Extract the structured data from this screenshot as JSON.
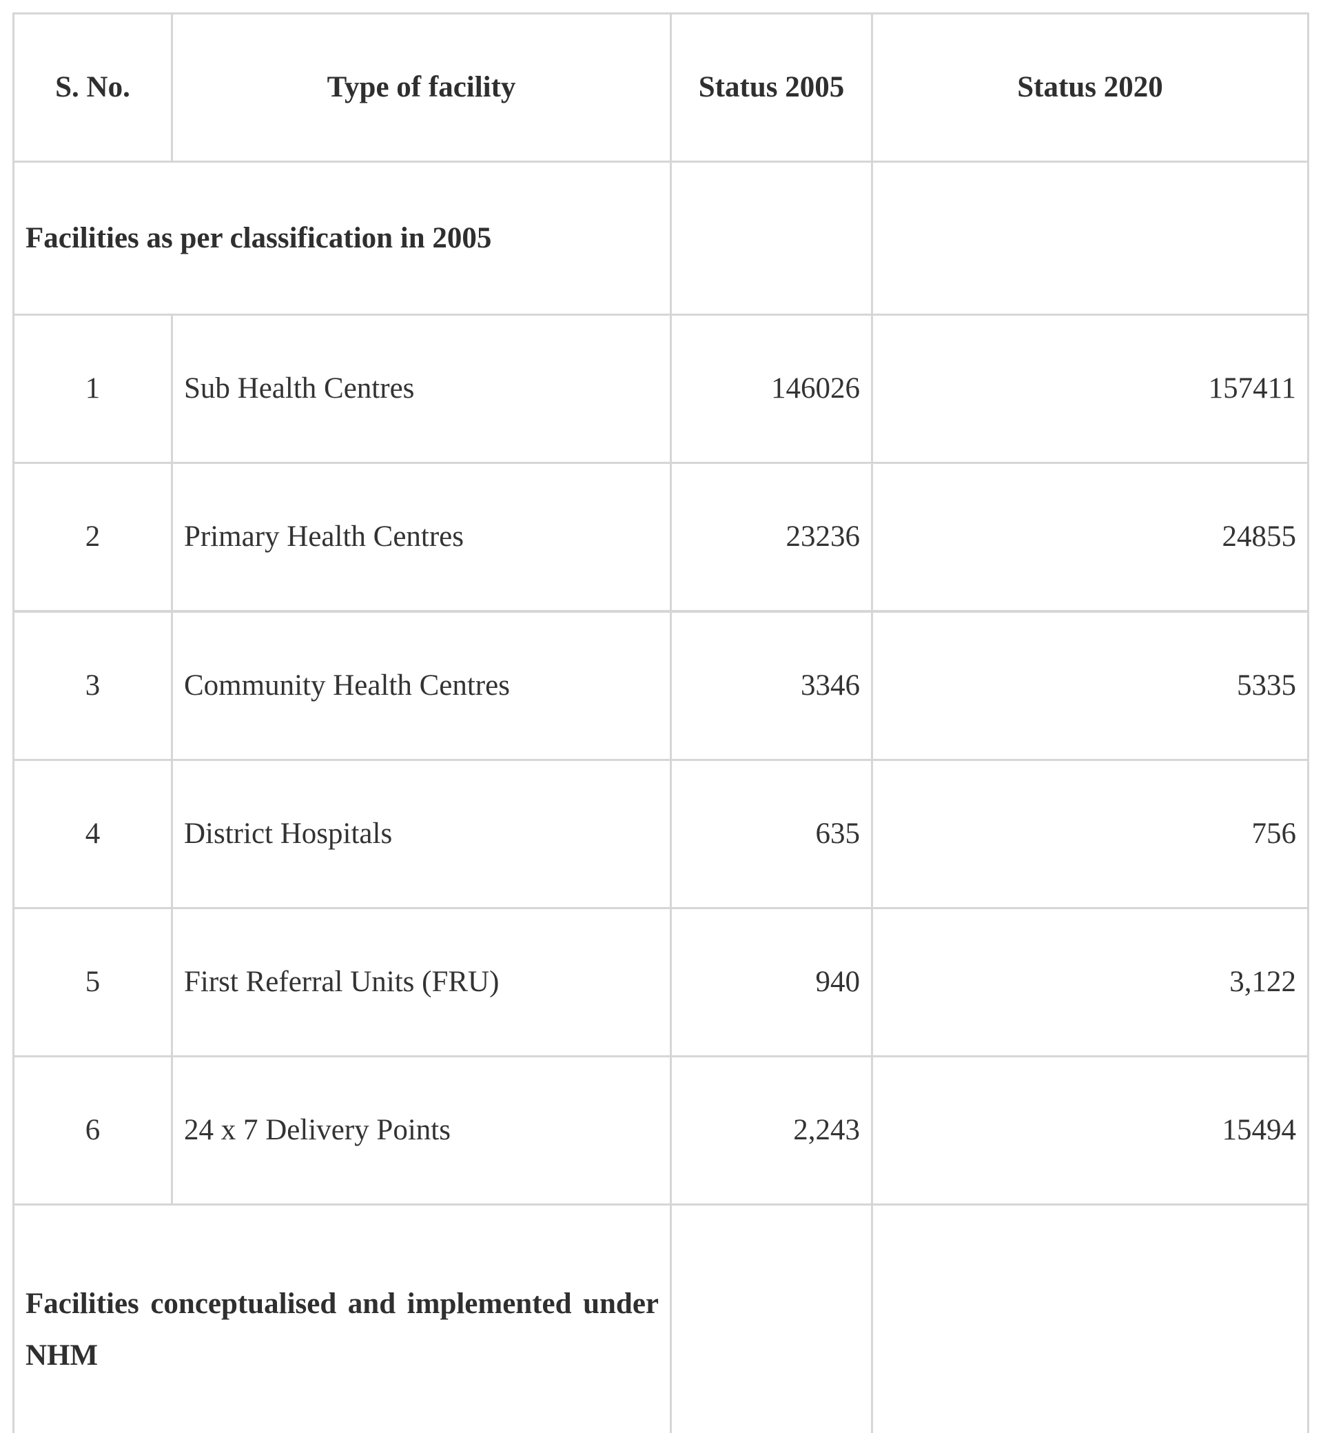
{
  "table": {
    "headers": {
      "sno": "S. No.",
      "type": "Type of facility",
      "status_2005": "Status 2005",
      "status_2020": "Status 2020"
    },
    "sections": [
      {
        "label": "Facilities as per classification in 2005",
        "rows": [
          {
            "sno": "1",
            "type": "Sub Health Centres",
            "status_2005": "146026",
            "status_2020": "157411"
          },
          {
            "sno": "2",
            "type": "Primary Health Centres",
            "status_2005": "23236",
            "status_2020": "24855"
          },
          {
            "sno": "3",
            "type": "Community Health Centres",
            "status_2005": "3346",
            "status_2020": "5335"
          },
          {
            "sno": "4",
            "type": "District Hospitals",
            "status_2005": "635",
            "status_2020": "756"
          },
          {
            "sno": "5",
            "type": "First Referral Units (FRU)",
            "status_2005": "940",
            "status_2020": "3,122"
          },
          {
            "sno": "6",
            "type": "24 x 7 Delivery Points",
            "status_2005": "2,243",
            "status_2020": "15494"
          }
        ]
      },
      {
        "label": "Facilities conceptualised and implemented under NHM",
        "rows": []
      }
    ]
  },
  "colors": {
    "border": "#d6d6d6",
    "text": "#333333",
    "background": "#ffffff"
  }
}
